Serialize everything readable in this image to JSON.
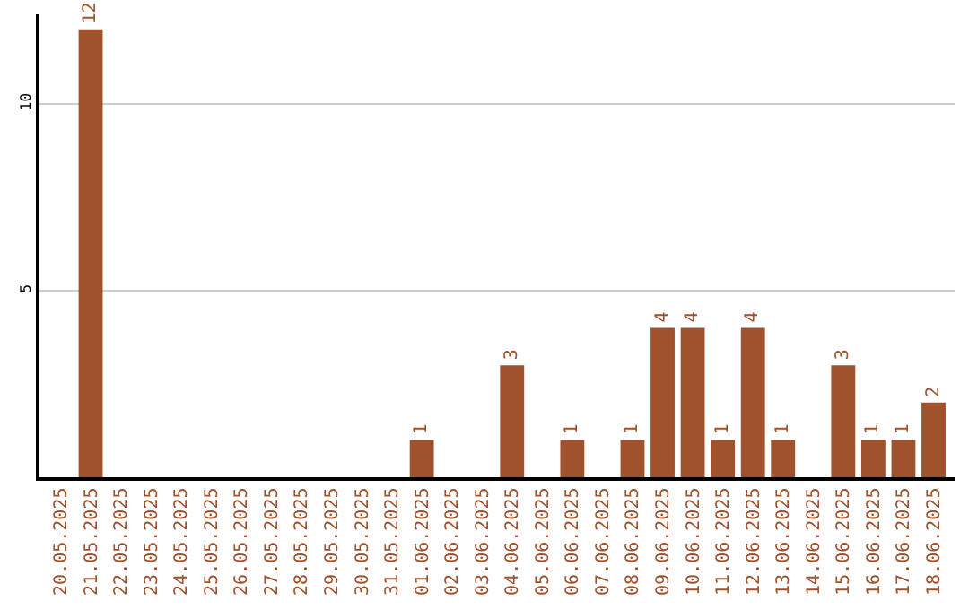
{
  "chart_data": {
    "type": "bar",
    "categories": [
      "20.05.2025",
      "21.05.2025",
      "22.05.2025",
      "23.05.2025",
      "24.05.2025",
      "25.05.2025",
      "26.05.2025",
      "27.05.2025",
      "28.05.2025",
      "29.05.2025",
      "30.05.2025",
      "31.05.2025",
      "01.06.2025",
      "02.06.2025",
      "03.06.2025",
      "04.06.2025",
      "05.06.2025",
      "06.06.2025",
      "07.06.2025",
      "08.06.2025",
      "09.06.2025",
      "10.06.2025",
      "11.06.2025",
      "12.06.2025",
      "13.06.2025",
      "14.06.2025",
      "15.06.2025",
      "16.06.2025",
      "17.06.2025",
      "18.06.2025"
    ],
    "values": [
      0,
      12,
      0,
      0,
      0,
      0,
      0,
      0,
      0,
      0,
      0,
      0,
      1,
      0,
      0,
      3,
      0,
      1,
      0,
      1,
      4,
      4,
      1,
      4,
      1,
      0,
      3,
      1,
      1,
      2
    ],
    "value_labels": [
      null,
      "12",
      null,
      null,
      null,
      null,
      null,
      null,
      null,
      null,
      null,
      null,
      "1",
      null,
      null,
      "3",
      null,
      "1",
      null,
      "1",
      "4",
      "4",
      "1",
      "4",
      "1",
      null,
      "3",
      "1",
      "1",
      "2"
    ],
    "color": "#a0522d",
    "ylim": [
      0,
      12.4
    ],
    "yticks": [
      5,
      10
    ],
    "grid": "y",
    "legend": false
  }
}
